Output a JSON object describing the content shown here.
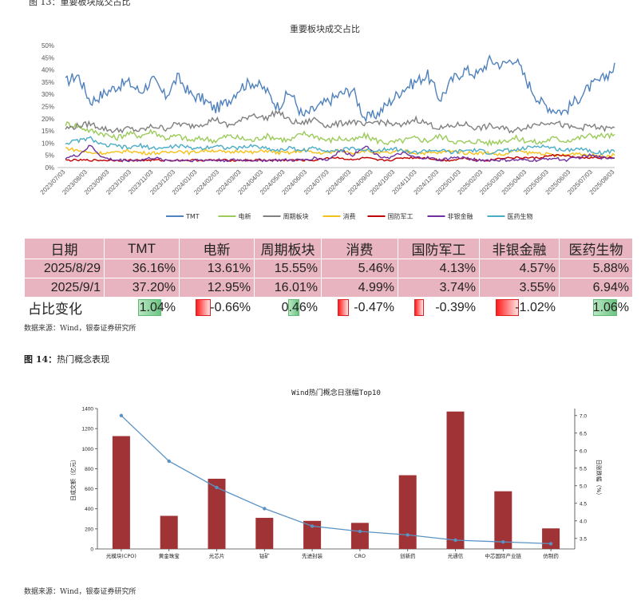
{
  "top_caption": "图 13：重要板块成交占比",
  "chart_data": [
    {
      "type": "line",
      "title": "重要板块成交占比",
      "ylim": [
        0,
        50
      ],
      "ytick_labels": [
        "0%",
        "5%",
        "10%",
        "15%",
        "20%",
        "25%",
        "30%",
        "35%",
        "40%",
        "45%",
        "50%"
      ],
      "yticks": [
        0,
        5,
        10,
        15,
        20,
        25,
        30,
        35,
        40,
        45,
        50
      ],
      "x_tick_labels": [
        "2023/07/03",
        "2023/08/03",
        "2023/09/03",
        "2023/10/03",
        "2023/11/03",
        "2023/12/03",
        "2024/01/03",
        "2024/02/03",
        "2024/03/03",
        "2024/04/03",
        "2024/05/03",
        "2024/06/03",
        "2024/07/03",
        "2024/08/03",
        "2024/09/03",
        "2024/10/03",
        "2024/11/03",
        "2024/12/03",
        "2025/01/03",
        "2025/02/03",
        "2025/03/03",
        "2025/04/03",
        "2025/05/03",
        "2025/06/03",
        "2025/07/03",
        "2025/08/03"
      ],
      "series": [
        {
          "name": "TMT",
          "color": "#4f81bd",
          "values": [
            35,
            38,
            27,
            30,
            33,
            35,
            31,
            36,
            29,
            37,
            30,
            28,
            24,
            27,
            33,
            35,
            32,
            25,
            31,
            21,
            24,
            27,
            30,
            32,
            20,
            22,
            27,
            32,
            35,
            38,
            28,
            36,
            40,
            38,
            44,
            42,
            45,
            35,
            27,
            24,
            23,
            28,
            33,
            36,
            41
          ]
        },
        {
          "name": "电新",
          "color": "#9bcb5a",
          "values": [
            18,
            17,
            15,
            14,
            12,
            14,
            13,
            15,
            12,
            13,
            11,
            12,
            11,
            13,
            12,
            11,
            13,
            12,
            11,
            14,
            13,
            11,
            12,
            11,
            13,
            11,
            10,
            11,
            12,
            11,
            13,
            11,
            10,
            11,
            10,
            11,
            12,
            11,
            10,
            12,
            11,
            12,
            13,
            13,
            13
          ]
        },
        {
          "name": "周期板块",
          "color": "#808080",
          "values": [
            16,
            17,
            18,
            16,
            15,
            16,
            15,
            17,
            16,
            18,
            17,
            18,
            20,
            17,
            19,
            22,
            20,
            23,
            19,
            18,
            20,
            17,
            18,
            19,
            17,
            19,
            18,
            17,
            20,
            18,
            16,
            17,
            18,
            16,
            17,
            16,
            15,
            17,
            18,
            19,
            17,
            16,
            17,
            16,
            16
          ]
        },
        {
          "name": "消费",
          "color": "#f5c019",
          "values": [
            8,
            7,
            6,
            6,
            6,
            7,
            6,
            6,
            6,
            7,
            6,
            7,
            7,
            6,
            7,
            6,
            7,
            6,
            6,
            7,
            6,
            6,
            7,
            6,
            7,
            6,
            6,
            7,
            6,
            6,
            6,
            7,
            6,
            6,
            6,
            5,
            7,
            6,
            6,
            5,
            5,
            6,
            5,
            5,
            5
          ]
        },
        {
          "name": "国防军工",
          "color": "#c00000",
          "values": [
            3,
            3,
            3,
            3,
            3,
            3,
            3,
            3,
            3,
            3,
            3,
            3,
            3,
            3,
            3,
            3,
            3,
            3,
            3,
            3,
            3,
            4,
            4,
            3,
            4,
            3,
            3,
            4,
            4,
            4,
            3,
            3,
            4,
            3,
            3,
            4,
            4,
            4,
            4,
            5,
            5,
            4,
            4,
            4,
            4
          ]
        },
        {
          "name": "非银金融",
          "color": "#7030a0",
          "values": [
            4,
            5,
            9,
            4,
            3,
            3,
            3,
            4,
            3,
            3,
            3,
            3,
            3,
            3,
            3,
            3,
            3,
            3,
            3,
            3,
            4,
            3,
            7,
            5,
            9,
            5,
            4,
            6,
            4,
            4,
            3,
            4,
            4,
            3,
            3,
            3,
            3,
            3,
            3,
            4,
            3,
            4,
            5,
            4,
            4
          ]
        },
        {
          "name": "医药生物",
          "color": "#4bacc6",
          "values": [
            10,
            11,
            12,
            9,
            9,
            8,
            9,
            8,
            8,
            9,
            8,
            8,
            9,
            8,
            8,
            9,
            8,
            7,
            8,
            7,
            8,
            7,
            7,
            8,
            7,
            7,
            8,
            7,
            6,
            7,
            7,
            6,
            7,
            7,
            6,
            7,
            7,
            8,
            9,
            8,
            7,
            8,
            7,
            6,
            7
          ]
        }
      ]
    },
    {
      "type": "bar+line",
      "title": "Wind热门概念日涨幅Top10",
      "categories": [
        "光模块(CPO)",
        "黄金珠宝",
        "光芯片",
        "钴矿",
        "先进封装",
        "CRO",
        "创新药",
        "光通信",
        "中芯国际产业链",
        "仿制药"
      ],
      "bar_series": {
        "name": "日成交额（亿元）",
        "color": "#a03335",
        "values": [
          1125,
          330,
          700,
          310,
          280,
          260,
          735,
          1370,
          575,
          205
        ]
      },
      "line_series": {
        "name": "日涨跌幅（%）",
        "color": "#5a93c4",
        "values": [
          7.0,
          5.7,
          4.95,
          4.35,
          3.85,
          3.7,
          3.6,
          3.45,
          3.4,
          3.35
        ]
      },
      "ylim_left": [
        0,
        1400
      ],
      "yticks_left": [
        0,
        200,
        400,
        600,
        800,
        1000,
        1200,
        1400
      ],
      "ylim_right": [
        3.2,
        7.2
      ],
      "yticks_right": [
        3.5,
        4.0,
        4.5,
        5.0,
        5.5,
        6.0,
        6.5,
        7.0
      ],
      "ylabel_left": "日成交额（亿元）",
      "ylabel_right": "日涨跌幅（%）"
    }
  ],
  "table": {
    "header": [
      "日期",
      "TMT",
      "电新",
      "周期板块",
      "消费",
      "国防军工",
      "非银金融",
      "医药生物"
    ],
    "rows": [
      [
        "2025/8/29",
        "36.16%",
        "13.61%",
        "15.55%",
        "5.46%",
        "4.13%",
        "4.57%",
        "5.88%"
      ],
      [
        "2025/9/1",
        "37.20%",
        "12.95%",
        "16.01%",
        "4.99%",
        "3.74%",
        "3.55%",
        "6.94%"
      ]
    ],
    "change_label": "占比变化",
    "changes": [
      {
        "text": "1.04%",
        "value": 1.04
      },
      {
        "text": "-0.66%",
        "value": -0.66
      },
      {
        "text": "0.46%",
        "value": 0.46
      },
      {
        "text": "-0.47%",
        "value": -0.47
      },
      {
        "text": "-0.39%",
        "value": -0.39
      },
      {
        "text": "-1.02%",
        "value": -1.02
      },
      {
        "text": "1.06%",
        "value": 1.06
      }
    ]
  },
  "source_1": "数据来源：Wind，银泰证券研究所",
  "figure14_label": "图 14：",
  "figure14_title": "热门概念表现",
  "source_2": "数据来源：Wind，银泰证券研究所"
}
